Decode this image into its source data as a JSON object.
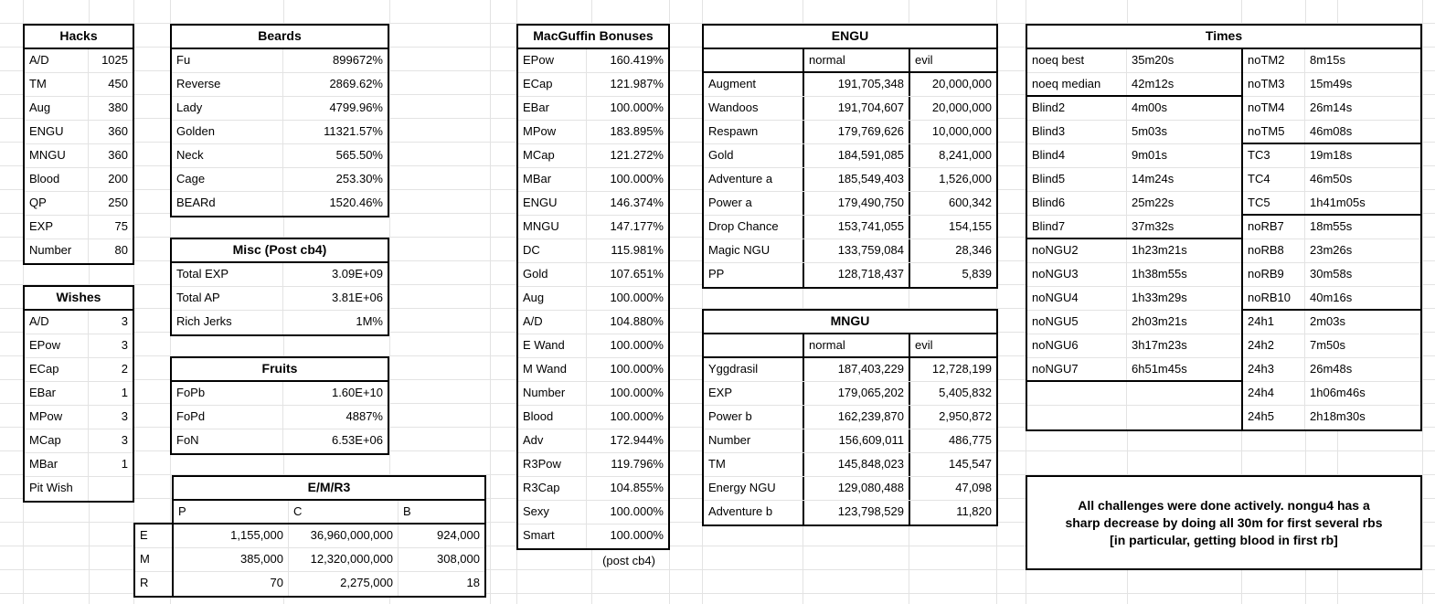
{
  "colors": {
    "background": "#ffffff",
    "text": "#000000",
    "table_border": "#000000",
    "gridline": "#e3e3e3"
  },
  "tables": {
    "hacks": {
      "title": "Hacks",
      "rows": [
        [
          "A/D",
          "1025"
        ],
        [
          "TM",
          "450"
        ],
        [
          "Aug",
          "380"
        ],
        [
          "ENGU",
          "360"
        ],
        [
          "MNGU",
          "360"
        ],
        [
          "Blood",
          "200"
        ],
        [
          "QP",
          "250"
        ],
        [
          "EXP",
          "75"
        ],
        [
          "Number",
          "80"
        ]
      ]
    },
    "wishes": {
      "title": "Wishes",
      "rows": [
        [
          "A/D",
          "3"
        ],
        [
          "EPow",
          "3"
        ],
        [
          "ECap",
          "2"
        ],
        [
          "EBar",
          "1"
        ],
        [
          "MPow",
          "3"
        ],
        [
          "MCap",
          "3"
        ],
        [
          "MBar",
          "1"
        ],
        [
          "Pit Wish",
          ""
        ]
      ]
    },
    "beards": {
      "title": "Beards",
      "rows": [
        [
          "Fu",
          "899672%"
        ],
        [
          "Reverse",
          "2869.62%"
        ],
        [
          "Lady",
          "4799.96%"
        ],
        [
          "Golden",
          "11321.57%"
        ],
        [
          "Neck",
          "565.50%"
        ],
        [
          "Cage",
          "253.30%"
        ],
        [
          "BEARd",
          "1520.46%"
        ]
      ]
    },
    "misc": {
      "title": "Misc (Post cb4)",
      "rows": [
        [
          "Total EXP",
          "3.09E+09"
        ],
        [
          "Total AP",
          "3.81E+06"
        ],
        [
          "Rich Jerks",
          "1M%"
        ]
      ]
    },
    "fruits": {
      "title": "Fruits",
      "rows": [
        [
          "FoPb",
          "1.60E+10"
        ],
        [
          "FoPd",
          "4887%"
        ],
        [
          "FoN",
          "6.53E+06"
        ]
      ]
    },
    "emr3": {
      "title": "E/M/R3",
      "col_headers": [
        "P",
        "C",
        "B"
      ],
      "row_headers": [
        "E",
        "M",
        "R"
      ],
      "rows": [
        [
          "1,155,000",
          "36,960,000,000",
          "924,000"
        ],
        [
          "385,000",
          "12,320,000,000",
          "308,000"
        ],
        [
          "70",
          "2,275,000",
          "18"
        ]
      ]
    },
    "macguffin": {
      "title": "MacGuffin Bonuses",
      "footnote": "(post cb4)",
      "rows": [
        [
          "EPow",
          "160.419%"
        ],
        [
          "ECap",
          "121.987%"
        ],
        [
          "EBar",
          "100.000%"
        ],
        [
          "MPow",
          "183.895%"
        ],
        [
          "MCap",
          "121.272%"
        ],
        [
          "MBar",
          "100.000%"
        ],
        [
          "ENGU",
          "146.374%"
        ],
        [
          "MNGU",
          "147.177%"
        ],
        [
          "DC",
          "115.981%"
        ],
        [
          "Gold",
          "107.651%"
        ],
        [
          "Aug",
          "100.000%"
        ],
        [
          "A/D",
          "104.880%"
        ],
        [
          "E Wand",
          "100.000%"
        ],
        [
          "M Wand",
          "100.000%"
        ],
        [
          "Number",
          "100.000%"
        ],
        [
          "Blood",
          "100.000%"
        ],
        [
          "Adv",
          "172.944%"
        ],
        [
          "R3Pow",
          "119.796%"
        ],
        [
          "R3Cap",
          "104.855%"
        ],
        [
          "Sexy",
          "100.000%"
        ],
        [
          "Smart",
          "100.000%"
        ]
      ]
    },
    "engu": {
      "title": "ENGU",
      "col_headers": [
        "normal",
        "evil"
      ],
      "rows": [
        [
          "Augment",
          "191,705,348",
          "20,000,000"
        ],
        [
          "Wandoos",
          "191,704,607",
          "20,000,000"
        ],
        [
          "Respawn",
          "179,769,626",
          "10,000,000"
        ],
        [
          "Gold",
          "184,591,085",
          "8,241,000"
        ],
        [
          "Adventure a",
          "185,549,403",
          "1,526,000"
        ],
        [
          "Power a",
          "179,490,750",
          "600,342"
        ],
        [
          "Drop Chance",
          "153,741,055",
          "154,155"
        ],
        [
          "Magic NGU",
          "133,759,084",
          "28,346"
        ],
        [
          "PP",
          "128,718,437",
          "5,839"
        ]
      ]
    },
    "mngu": {
      "title": "MNGU",
      "col_headers": [
        "normal",
        "evil"
      ],
      "rows": [
        [
          "Yggdrasil",
          "187,403,229",
          "12,728,199"
        ],
        [
          "EXP",
          "179,065,202",
          "5,405,832"
        ],
        [
          "Power b",
          "162,239,870",
          "2,950,872"
        ],
        [
          "Number",
          "156,609,011",
          "486,775"
        ],
        [
          "TM",
          "145,848,023",
          "145,547"
        ],
        [
          "Energy NGU",
          "129,080,488",
          "47,098"
        ],
        [
          "Adventure b",
          "123,798,529",
          "11,820"
        ]
      ]
    },
    "times": {
      "title": "Times",
      "left_rows": [
        [
          "noeq best",
          "35m20s"
        ],
        [
          "noeq median",
          "42m12s"
        ],
        [
          "Blind2",
          "4m00s"
        ],
        [
          "Blind3",
          "5m03s"
        ],
        [
          "Blind4",
          "9m01s"
        ],
        [
          "Blind5",
          "14m24s"
        ],
        [
          "Blind6",
          "25m22s"
        ],
        [
          "Blind7",
          "37m32s"
        ],
        [
          "noNGU2",
          "1h23m21s"
        ],
        [
          "noNGU3",
          "1h38m55s"
        ],
        [
          "noNGU4",
          "1h33m29s"
        ],
        [
          "noNGU5",
          "2h03m21s"
        ],
        [
          "noNGU6",
          "3h17m23s"
        ],
        [
          "noNGU7",
          "6h51m45s"
        ],
        [
          "",
          ""
        ],
        [
          "",
          ""
        ]
      ],
      "right_rows": [
        [
          "noTM2",
          "8m15s"
        ],
        [
          "noTM3",
          "15m49s"
        ],
        [
          "noTM4",
          "26m14s"
        ],
        [
          "noTM5",
          "46m08s"
        ],
        [
          "TC3",
          "19m18s"
        ],
        [
          "TC4",
          "46m50s"
        ],
        [
          "TC5",
          "1h41m05s"
        ],
        [
          "noRB7",
          "18m55s"
        ],
        [
          "noRB8",
          "23m26s"
        ],
        [
          "noRB9",
          "30m58s"
        ],
        [
          "noRB10",
          "40m16s"
        ],
        [
          "24h1",
          "2m03s"
        ],
        [
          "24h2",
          "7m50s"
        ],
        [
          "24h3",
          "26m48s"
        ],
        [
          "24h4",
          "1h06m46s"
        ],
        [
          "24h5",
          "2h18m30s"
        ]
      ]
    }
  },
  "note": {
    "lines": [
      "All challenges were done actively. nongu4 has a",
      "sharp decrease by doing all 30m for first several rbs",
      "[in particular, getting blood in first rb]"
    ]
  }
}
